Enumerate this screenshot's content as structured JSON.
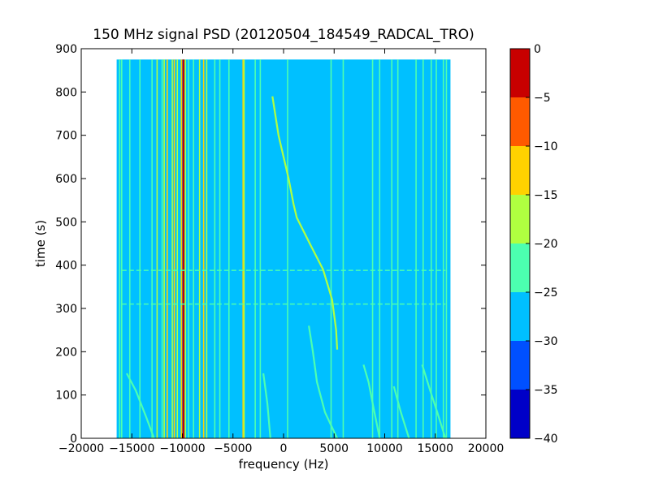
{
  "chart_data": {
    "type": "heatmap",
    "title": "150 MHz signal PSD (20120504_184549_RADCAL_TRO)",
    "xlabel": "frequency (Hz)",
    "ylabel": "time (s)",
    "xlim": [
      -20000,
      20000
    ],
    "ylim": [
      0,
      900
    ],
    "x_ticks": [
      -20000,
      -15000,
      -10000,
      -5000,
      0,
      5000,
      10000,
      15000,
      20000
    ],
    "x_tick_labels": [
      "−20000",
      "−15000",
      "−10000",
      "−5000",
      "0",
      "5000",
      "10000",
      "15000",
      "20000"
    ],
    "y_ticks": [
      0,
      100,
      200,
      300,
      400,
      500,
      600,
      700,
      800,
      900
    ],
    "y_tick_labels": [
      "0",
      "100",
      "200",
      "300",
      "400",
      "500",
      "600",
      "700",
      "800",
      "900"
    ],
    "data_extent": {
      "x": [
        -16500,
        16500
      ],
      "y": [
        0,
        875
      ]
    },
    "background_level": -27.5,
    "colorbar": {
      "levels": [
        -40,
        -35,
        -30,
        -25,
        -20,
        -15,
        -10,
        -5,
        0
      ],
      "tick_labels": [
        "−40",
        "−35",
        "−30",
        "−25",
        "−20",
        "−15",
        "−10",
        "−5",
        "0"
      ],
      "colors": [
        "#0000c8",
        "#0050ff",
        "#00c0ff",
        "#4cffb0",
        "#b0ff40",
        "#ffd200",
        "#ff5a00",
        "#c80000"
      ]
    },
    "vertical_lines": [
      {
        "x": -16200,
        "level": -22.5
      },
      {
        "x": -16000,
        "level": -22.5
      },
      {
        "x": -15200,
        "level": -22.5
      },
      {
        "x": -14200,
        "level": -22.5
      },
      {
        "x": -13000,
        "level": -22.5
      },
      {
        "x": -12500,
        "level": -17.5
      },
      {
        "x": -12000,
        "level": -22.5
      },
      {
        "x": -11800,
        "level": -17.5
      },
      {
        "x": -11500,
        "level": -12.5
      },
      {
        "x": -11000,
        "level": -17.5
      },
      {
        "x": -10800,
        "level": -12.5
      },
      {
        "x": -10500,
        "level": -17.5
      },
      {
        "x": -10100,
        "level": -12.5
      },
      {
        "x": -9900,
        "level": -2.5
      },
      {
        "x": -9700,
        "level": -17.5
      },
      {
        "x": -9400,
        "level": -22.5
      },
      {
        "x": -8900,
        "level": -22.5
      },
      {
        "x": -8300,
        "level": -17.5
      },
      {
        "x": -7900,
        "level": -12.5
      },
      {
        "x": -7600,
        "level": -17.5
      },
      {
        "x": -6800,
        "level": -22.5
      },
      {
        "x": -6300,
        "level": -22.5
      },
      {
        "x": -5400,
        "level": -22.5
      },
      {
        "x": -4000,
        "level": -12.5
      },
      {
        "x": -3900,
        "level": -17.5
      },
      {
        "x": -2800,
        "level": -22.5
      },
      {
        "x": -2300,
        "level": -22.5
      },
      {
        "x": 400,
        "level": -22.5
      },
      {
        "x": 4700,
        "level": -22.5
      },
      {
        "x": 5900,
        "level": -22.5
      },
      {
        "x": 8800,
        "level": -22.5
      },
      {
        "x": 9500,
        "level": -22.5
      },
      {
        "x": 10700,
        "level": -22.5
      },
      {
        "x": 11300,
        "level": -22.5
      },
      {
        "x": 13100,
        "level": -22.5
      },
      {
        "x": 13800,
        "level": -22.5
      },
      {
        "x": 14600,
        "level": -22.5
      },
      {
        "x": 15100,
        "level": -22.5
      },
      {
        "x": 15800,
        "level": -22.5
      },
      {
        "x": 16100,
        "level": -22.5
      }
    ],
    "drift_curves": [
      {
        "level": -17.5,
        "points": [
          [
            5300,
            205
          ],
          [
            5200,
            250
          ],
          [
            4800,
            320
          ],
          [
            3900,
            390
          ],
          [
            2800,
            440
          ],
          [
            1300,
            510
          ],
          [
            1000,
            540
          ],
          [
            500,
            600
          ],
          [
            -500,
            700
          ],
          [
            -1100,
            790
          ]
        ]
      },
      {
        "level": -22.5,
        "points": [
          [
            5300,
            0
          ],
          [
            4100,
            60
          ],
          [
            3300,
            130
          ],
          [
            2900,
            200
          ],
          [
            2500,
            260
          ]
        ]
      },
      {
        "level": -22.5,
        "points": [
          [
            -1300,
            0
          ],
          [
            -1600,
            80
          ],
          [
            -2000,
            150
          ]
        ]
      },
      {
        "level": -22.5,
        "points": [
          [
            -12800,
            0
          ],
          [
            -13600,
            50
          ],
          [
            -14600,
            110
          ],
          [
            -15500,
            150
          ]
        ]
      },
      {
        "level": -22.5,
        "points": [
          [
            9500,
            0
          ],
          [
            8900,
            70
          ],
          [
            8400,
            130
          ],
          [
            7900,
            170
          ]
        ]
      },
      {
        "level": -22.5,
        "points": [
          [
            12400,
            0
          ],
          [
            11600,
            60
          ],
          [
            10900,
            120
          ]
        ]
      },
      {
        "level": -22.5,
        "points": [
          [
            16000,
            0
          ],
          [
            15200,
            60
          ],
          [
            14500,
            110
          ],
          [
            13700,
            170
          ]
        ]
      }
    ],
    "horizontal_streaks": [
      {
        "y": 310,
        "x": [
          -16000,
          16000
        ],
        "level": -22.5
      },
      {
        "y": 388,
        "x": [
          -16000,
          16000
        ],
        "level": -22.5
      }
    ]
  }
}
